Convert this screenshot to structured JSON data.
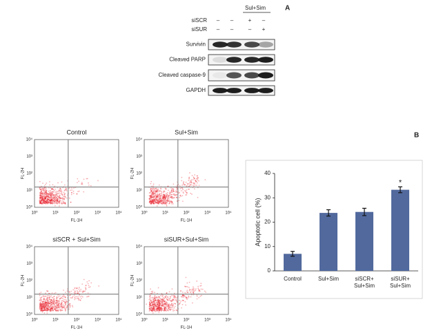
{
  "panel_a": {
    "label": "A",
    "blot": {
      "header": "Sul+Sim",
      "rows": [
        {
          "label": "siSCR",
          "marks": [
            "–",
            "–",
            "+",
            "–"
          ]
        },
        {
          "label": "siSUR",
          "marks": [
            "–",
            "–",
            "–",
            "+"
          ]
        }
      ],
      "bands": [
        "Survivin",
        "Cleaved PARP",
        "Cleaved caspase-9",
        "GAPDH"
      ]
    }
  },
  "flow": {
    "x_label": "FL-1H",
    "y_label": "FL-2H",
    "ticks": [
      "10⁰",
      "10¹",
      "10²",
      "10³",
      "10⁴"
    ],
    "plots": [
      {
        "title": "Control"
      },
      {
        "title": "Sul+Sim"
      },
      {
        "title": "siSCR + Sul+Sim"
      },
      {
        "title": "siSUR+Sul+Sim"
      }
    ]
  },
  "chart_data": {
    "type": "bar",
    "panel_label": "B",
    "y_label": "Apoptotic cell (%)",
    "categories": [
      "Control",
      "Sul+Sim",
      "siSCR+\nSul+Sim",
      "siSUR+\nSul+Sim"
    ],
    "values": [
      7,
      23.8,
      24.2,
      33.3
    ],
    "errors": [
      1,
      1.3,
      1.5,
      1.2
    ],
    "annotations": [
      null,
      null,
      null,
      "*"
    ],
    "color": "#51699d",
    "ylim": [
      0,
      40
    ],
    "yticks": [
      0,
      10,
      20,
      30,
      40
    ]
  }
}
